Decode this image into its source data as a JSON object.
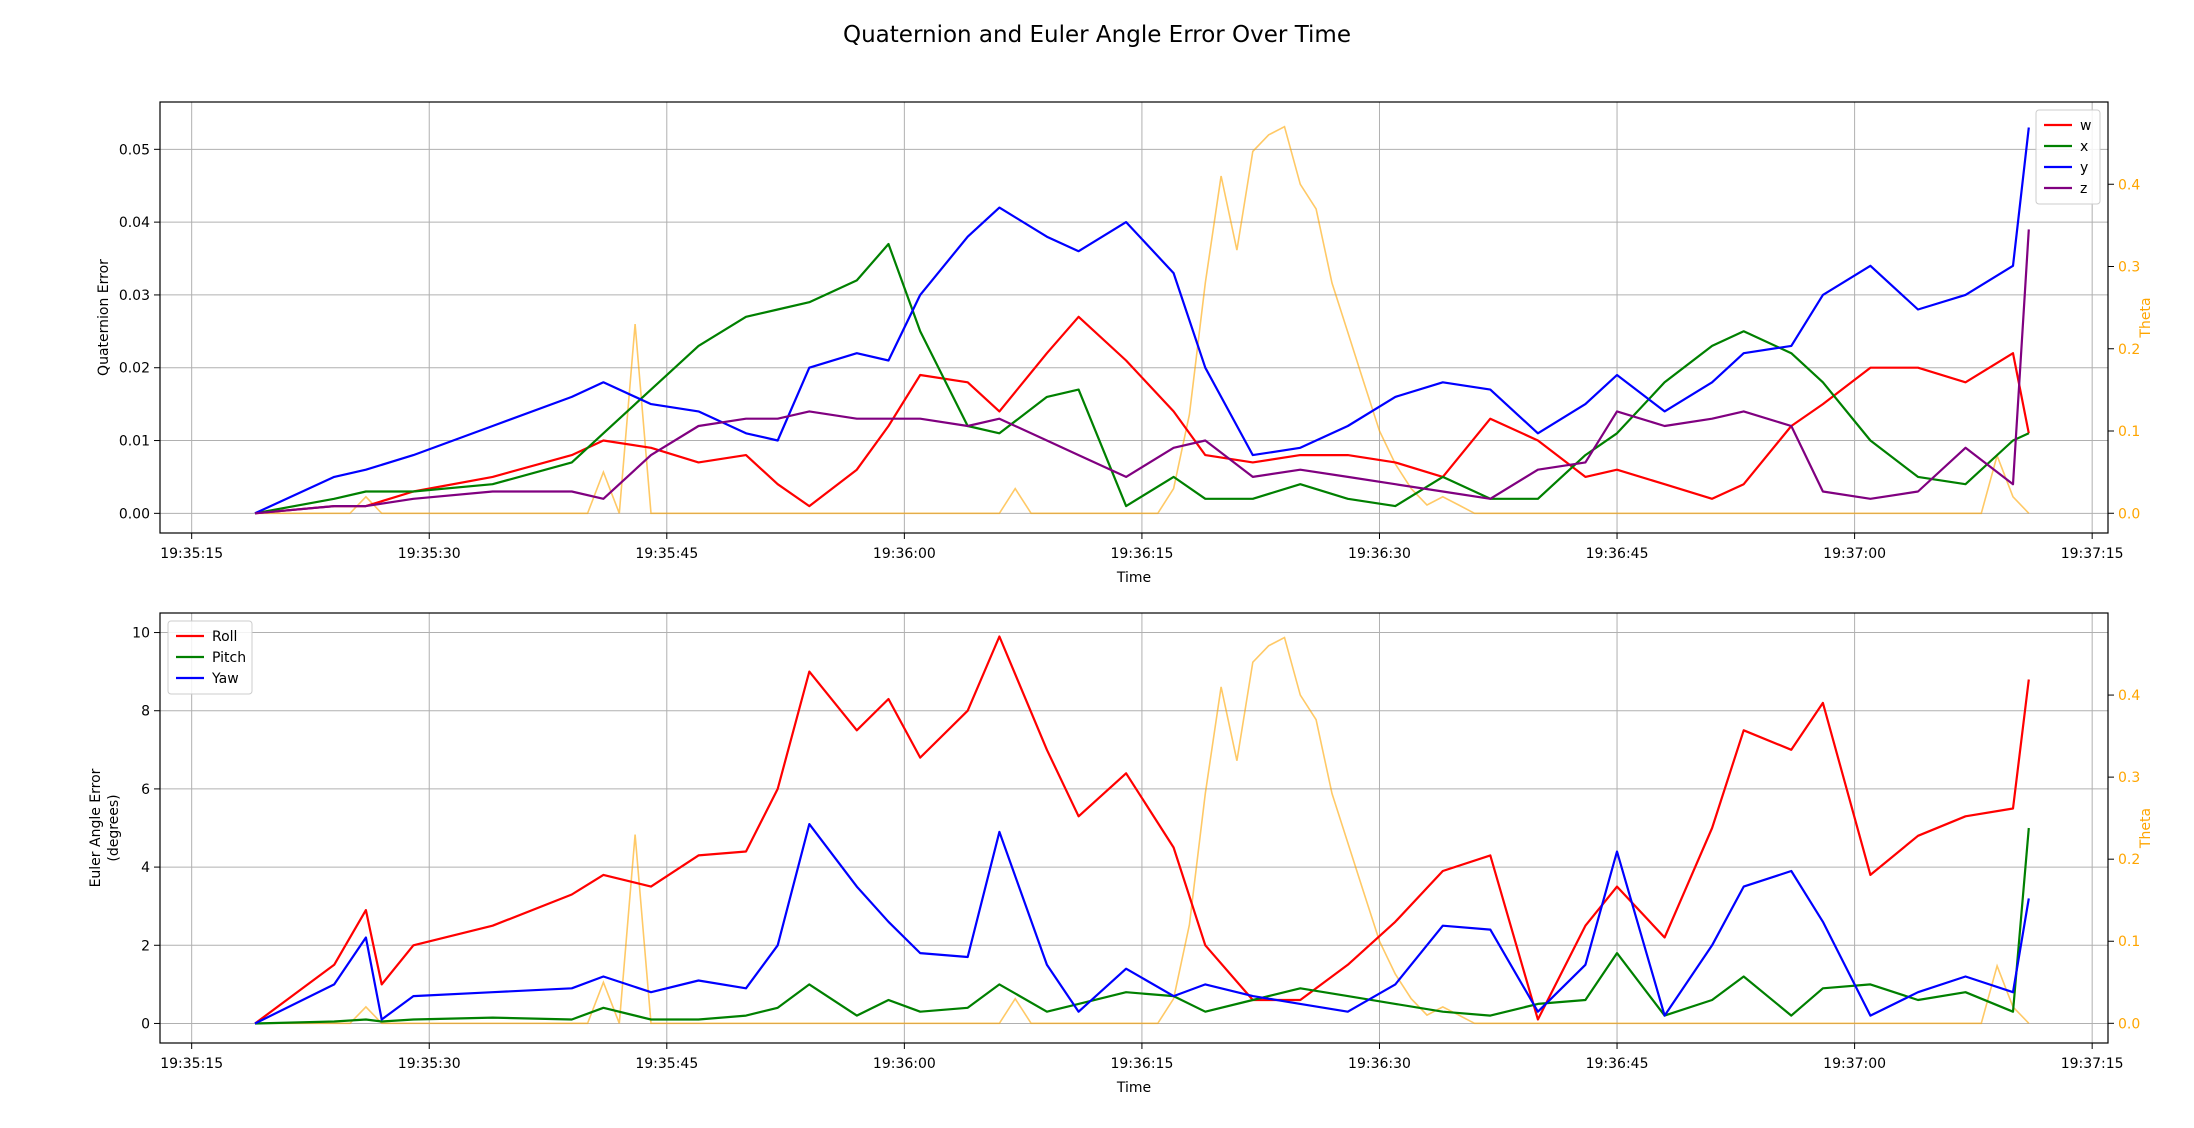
{
  "figure": {
    "title": "Quaternion and Euler Angle Error Over Time"
  },
  "chart_data": [
    {
      "type": "line",
      "title": "",
      "xlabel": "Time",
      "ylabel": "Quaternion Error",
      "y2label": "Theta",
      "xlim": [
        "19:35:13",
        "19:37:16"
      ],
      "ylim": [
        -0.0027,
        0.0565
      ],
      "y2lim": [
        -0.024,
        0.5
      ],
      "xticks": [
        "19:35:15",
        "19:35:30",
        "19:35:45",
        "19:36:00",
        "19:36:15",
        "19:36:30",
        "19:36:45",
        "19:37:00",
        "19:37:15"
      ],
      "yticks": [
        "0.00",
        "0.01",
        "0.02",
        "0.03",
        "0.04",
        "0.05"
      ],
      "y2ticks": [
        "0.0",
        "0.1",
        "0.2",
        "0.3",
        "0.4"
      ],
      "grid": true,
      "legend_position": "top-right",
      "colors": {
        "w": "#ff0000",
        "x": "#008000",
        "y": "#0000ff",
        "z": "#800080",
        "theta": "#ffa500"
      },
      "x": [
        "19:35:19",
        "19:35:24",
        "19:35:26",
        "19:35:29",
        "19:35:34",
        "19:35:39",
        "19:35:41",
        "19:35:44",
        "19:35:47",
        "19:35:50",
        "19:35:52",
        "19:35:54",
        "19:35:57",
        "19:35:59",
        "19:36:01",
        "19:36:04",
        "19:36:06",
        "19:36:09",
        "19:36:11",
        "19:36:14",
        "19:36:17",
        "19:36:19",
        "19:36:22",
        "19:36:25",
        "19:36:28",
        "19:36:31",
        "19:36:34",
        "19:36:37",
        "19:36:40",
        "19:36:43",
        "19:36:45",
        "19:36:48",
        "19:36:51",
        "19:36:53",
        "19:36:56",
        "19:36:58",
        "19:37:01",
        "19:37:04",
        "19:37:07",
        "19:37:10",
        "19:37:11"
      ],
      "series": [
        {
          "name": "w",
          "values": [
            0.0,
            0.001,
            0.001,
            0.003,
            0.005,
            0.008,
            0.01,
            0.009,
            0.007,
            0.008,
            0.004,
            0.001,
            0.006,
            0.012,
            0.019,
            0.018,
            0.014,
            0.022,
            0.027,
            0.021,
            0.014,
            0.008,
            0.007,
            0.008,
            0.008,
            0.007,
            0.005,
            0.013,
            0.01,
            0.005,
            0.006,
            0.004,
            0.002,
            0.004,
            0.012,
            0.015,
            0.02,
            0.02,
            0.018,
            0.022,
            0.011
          ]
        },
        {
          "name": "x",
          "values": [
            0.0,
            0.002,
            0.003,
            0.003,
            0.004,
            0.007,
            0.011,
            0.017,
            0.023,
            0.027,
            0.028,
            0.029,
            0.032,
            0.037,
            0.025,
            0.012,
            0.011,
            0.016,
            0.017,
            0.001,
            0.005,
            0.002,
            0.002,
            0.004,
            0.002,
            0.001,
            0.005,
            0.002,
            0.002,
            0.008,
            0.011,
            0.018,
            0.023,
            0.025,
            0.022,
            0.018,
            0.01,
            0.005,
            0.004,
            0.01,
            0.011
          ]
        },
        {
          "name": "y",
          "values": [
            0.0,
            0.005,
            0.006,
            0.008,
            0.012,
            0.016,
            0.018,
            0.015,
            0.014,
            0.011,
            0.01,
            0.02,
            0.022,
            0.021,
            0.03,
            0.038,
            0.042,
            0.038,
            0.036,
            0.04,
            0.033,
            0.02,
            0.008,
            0.009,
            0.012,
            0.016,
            0.018,
            0.017,
            0.011,
            0.015,
            0.019,
            0.014,
            0.018,
            0.022,
            0.023,
            0.03,
            0.034,
            0.028,
            0.03,
            0.034,
            0.053
          ]
        },
        {
          "name": "z",
          "values": [
            0.0,
            0.001,
            0.001,
            0.002,
            0.003,
            0.003,
            0.002,
            0.008,
            0.012,
            0.013,
            0.013,
            0.014,
            0.013,
            0.013,
            0.013,
            0.012,
            0.013,
            0.01,
            0.008,
            0.005,
            0.009,
            0.01,
            0.005,
            0.006,
            0.005,
            0.004,
            0.003,
            0.002,
            0.006,
            0.007,
            0.014,
            0.012,
            0.013,
            0.014,
            0.012,
            0.003,
            0.002,
            0.003,
            0.009,
            0.004,
            0.039
          ]
        }
      ],
      "theta_series": {
        "name": "Theta",
        "x": [
          "19:35:19",
          "19:35:25",
          "19:35:26",
          "19:35:27",
          "19:35:29",
          "19:35:40",
          "19:35:41",
          "19:35:42",
          "19:35:43",
          "19:35:44",
          "19:35:45",
          "19:36:06",
          "19:36:07",
          "19:36:08",
          "19:36:16",
          "19:36:17",
          "19:36:18",
          "19:36:19",
          "19:36:20",
          "19:36:21",
          "19:36:22",
          "19:36:23",
          "19:36:24",
          "19:36:25",
          "19:36:26",
          "19:36:27",
          "19:36:28",
          "19:36:29",
          "19:36:30",
          "19:36:31",
          "19:36:32",
          "19:36:33",
          "19:36:34",
          "19:36:35",
          "19:36:36",
          "19:37:08",
          "19:37:09",
          "19:37:10",
          "19:37:11"
        ],
        "values": [
          0.0,
          0.0,
          0.02,
          0.0,
          0.0,
          0.0,
          0.05,
          0.0,
          0.23,
          0.0,
          0.0,
          0.0,
          0.03,
          0.0,
          0.0,
          0.03,
          0.12,
          0.28,
          0.41,
          0.32,
          0.44,
          0.46,
          0.47,
          0.4,
          0.37,
          0.28,
          0.22,
          0.16,
          0.1,
          0.06,
          0.03,
          0.01,
          0.02,
          0.01,
          0.0,
          0.0,
          0.07,
          0.02,
          0.0
        ]
      }
    },
    {
      "type": "line",
      "title": "",
      "xlabel": "Time",
      "ylabel": "Euler Angle Error\n(degrees)",
      "y2label": "Theta",
      "xlim": [
        "19:35:13",
        "19:37:16"
      ],
      "ylim": [
        -0.5,
        10.5
      ],
      "y2lim": [
        -0.024,
        0.5
      ],
      "xticks": [
        "19:35:15",
        "19:35:30",
        "19:35:45",
        "19:36:00",
        "19:36:15",
        "19:36:30",
        "19:36:45",
        "19:37:00",
        "19:37:15"
      ],
      "yticks": [
        "0",
        "2",
        "4",
        "6",
        "8",
        "10"
      ],
      "y2ticks": [
        "0.0",
        "0.1",
        "0.2",
        "0.3",
        "0.4"
      ],
      "grid": true,
      "legend_position": "top-left",
      "colors": {
        "Roll": "#ff0000",
        "Pitch": "#008000",
        "Yaw": "#0000ff",
        "theta": "#ffa500"
      },
      "x": [
        "19:35:19",
        "19:35:24",
        "19:35:26",
        "19:35:27",
        "19:35:29",
        "19:35:34",
        "19:35:39",
        "19:35:41",
        "19:35:44",
        "19:35:47",
        "19:35:50",
        "19:35:52",
        "19:35:54",
        "19:35:57",
        "19:35:59",
        "19:36:01",
        "19:36:04",
        "19:36:06",
        "19:36:09",
        "19:36:11",
        "19:36:14",
        "19:36:17",
        "19:36:19",
        "19:36:22",
        "19:36:25",
        "19:36:28",
        "19:36:31",
        "19:36:34",
        "19:36:37",
        "19:36:40",
        "19:36:43",
        "19:36:45",
        "19:36:48",
        "19:36:51",
        "19:36:53",
        "19:36:56",
        "19:36:58",
        "19:37:01",
        "19:37:04",
        "19:37:07",
        "19:37:10",
        "19:37:11"
      ],
      "series": [
        {
          "name": "Roll",
          "values": [
            0.0,
            1.5,
            2.9,
            1.0,
            2.0,
            2.5,
            3.3,
            3.8,
            3.5,
            4.3,
            4.4,
            6.0,
            9.0,
            7.5,
            8.3,
            6.8,
            8.0,
            9.9,
            7.0,
            5.3,
            6.4,
            4.5,
            2.0,
            0.6,
            0.6,
            1.5,
            2.6,
            3.9,
            4.3,
            0.1,
            2.5,
            3.5,
            2.2,
            5.0,
            7.5,
            7.0,
            8.2,
            3.8,
            4.8,
            5.3,
            5.5,
            8.8
          ]
        },
        {
          "name": "Pitch",
          "values": [
            0.0,
            0.05,
            0.1,
            0.05,
            0.1,
            0.15,
            0.1,
            0.4,
            0.1,
            0.1,
            0.2,
            0.4,
            1.0,
            0.2,
            0.6,
            0.3,
            0.4,
            1.0,
            0.3,
            0.5,
            0.8,
            0.7,
            0.3,
            0.6,
            0.9,
            0.7,
            0.5,
            0.3,
            0.2,
            0.5,
            0.6,
            1.8,
            0.2,
            0.6,
            1.2,
            0.2,
            0.9,
            1.0,
            0.6,
            0.8,
            0.3,
            5.0
          ]
        },
        {
          "name": "Yaw",
          "values": [
            0.0,
            1.0,
            2.2,
            0.1,
            0.7,
            0.8,
            0.9,
            1.2,
            0.8,
            1.1,
            0.9,
            2.0,
            5.1,
            3.5,
            2.6,
            1.8,
            1.7,
            4.9,
            1.5,
            0.3,
            1.4,
            0.7,
            1.0,
            0.7,
            0.5,
            0.3,
            1.0,
            2.5,
            2.4,
            0.3,
            1.5,
            4.4,
            0.2,
            2.0,
            3.5,
            3.9,
            2.6,
            0.2,
            0.8,
            1.2,
            0.8,
            3.2
          ]
        }
      ],
      "theta_series": {
        "name": "Theta",
        "x": [
          "19:35:19",
          "19:35:25",
          "19:35:26",
          "19:35:27",
          "19:35:29",
          "19:35:40",
          "19:35:41",
          "19:35:42",
          "19:35:43",
          "19:35:44",
          "19:35:45",
          "19:36:06",
          "19:36:07",
          "19:36:08",
          "19:36:16",
          "19:36:17",
          "19:36:18",
          "19:36:19",
          "19:36:20",
          "19:36:21",
          "19:36:22",
          "19:36:23",
          "19:36:24",
          "19:36:25",
          "19:36:26",
          "19:36:27",
          "19:36:28",
          "19:36:29",
          "19:36:30",
          "19:36:31",
          "19:36:32",
          "19:36:33",
          "19:36:34",
          "19:36:35",
          "19:36:36",
          "19:37:08",
          "19:37:09",
          "19:37:10",
          "19:37:11"
        ],
        "values": [
          0.0,
          0.0,
          0.02,
          0.0,
          0.0,
          0.0,
          0.05,
          0.0,
          0.23,
          0.0,
          0.0,
          0.0,
          0.03,
          0.0,
          0.0,
          0.03,
          0.12,
          0.28,
          0.41,
          0.32,
          0.44,
          0.46,
          0.47,
          0.4,
          0.37,
          0.28,
          0.22,
          0.16,
          0.1,
          0.06,
          0.03,
          0.01,
          0.02,
          0.01,
          0.0,
          0.0,
          0.07,
          0.02,
          0.0
        ]
      }
    }
  ]
}
